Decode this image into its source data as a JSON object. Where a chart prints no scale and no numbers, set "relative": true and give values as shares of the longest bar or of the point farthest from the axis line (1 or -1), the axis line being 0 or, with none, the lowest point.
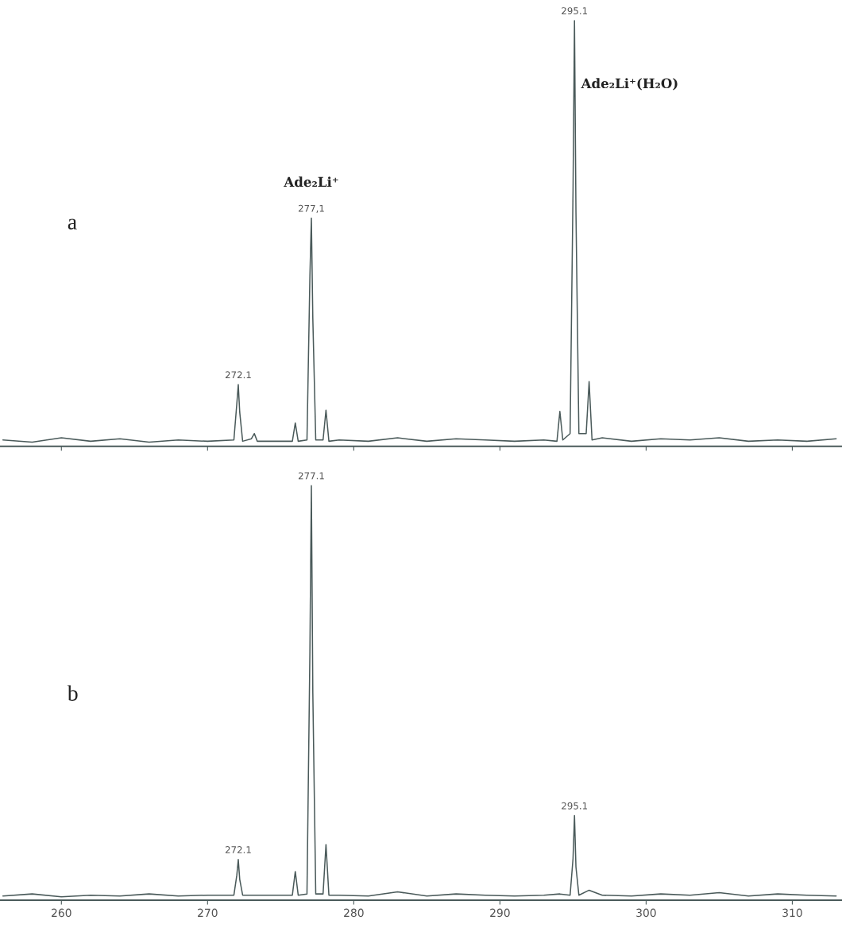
{
  "chart_data": [
    {
      "type": "line",
      "relative": true,
      "xlim": [
        255.8,
        313.4
      ],
      "xticks": [
        260,
        270,
        280,
        290,
        300,
        310
      ],
      "tick_labels": false,
      "series": [
        {
          "color": "#4a5a5a",
          "x": [
            256,
            258,
            260,
            262,
            264,
            266,
            268,
            270,
            271.8,
            272.0,
            272.1,
            272.2,
            272.4,
            273.0,
            273.2,
            273.4,
            275.8,
            276.0,
            276.2,
            276.8,
            277.0,
            277.1,
            277.2,
            277.4,
            277.9,
            278.1,
            278.3,
            279,
            281,
            283,
            285,
            287,
            289,
            291,
            293,
            293.9,
            294.1,
            294.3,
            294.8,
            295.0,
            295.1,
            295.2,
            295.4,
            295.9,
            296.1,
            296.3,
            297,
            299,
            301,
            303,
            305,
            307,
            309,
            311,
            313
          ],
          "values": [
            0.015,
            0.01,
            0.02,
            0.012,
            0.018,
            0.01,
            0.015,
            0.012,
            0.015,
            0.1,
            0.145,
            0.08,
            0.012,
            0.018,
            0.03,
            0.012,
            0.012,
            0.055,
            0.012,
            0.015,
            0.4,
            0.536,
            0.3,
            0.015,
            0.015,
            0.085,
            0.012,
            0.015,
            0.012,
            0.02,
            0.012,
            0.018,
            0.015,
            0.012,
            0.015,
            0.012,
            0.082,
            0.015,
            0.03,
            0.6,
            1,
            0.55,
            0.03,
            0.03,
            0.152,
            0.015,
            0.02,
            0.012,
            0.018,
            0.015,
            0.02,
            0.012,
            0.015,
            0.012,
            0.018
          ]
        }
      ],
      "annotations": [
        "a",
        {
          "text": "272.1",
          "x": 272.1,
          "y": 0.145
        },
        {
          "text": "277,1",
          "x": 277.1,
          "y": 0.536
        },
        {
          "text": "295.1",
          "x": 295.1,
          "y": 1
        },
        {
          "text": "Ade₂Li⁺",
          "x": 277.1,
          "y": 0.536
        },
        {
          "text": "Ade₂Li⁺(H₂O)",
          "x": 295.1,
          "y": 0.85
        }
      ]
    },
    {
      "type": "line",
      "relative": true,
      "xlim": [
        255.8,
        313.4
      ],
      "xticks": [
        260,
        270,
        280,
        290,
        300,
        310
      ],
      "tick_labels": "x",
      "series": [
        {
          "color": "#4a5a5a",
          "x": [
            256,
            258,
            260,
            262,
            264,
            266,
            268,
            270,
            271.8,
            272.0,
            272.1,
            272.2,
            272.4,
            275.8,
            276.0,
            276.2,
            276.8,
            277.0,
            277.1,
            277.2,
            277.4,
            277.9,
            278.1,
            278.3,
            279,
            281,
            283,
            285,
            287,
            289,
            291,
            293,
            294.1,
            294.8,
            295.0,
            295.1,
            295.2,
            295.4,
            296.1,
            297,
            299,
            301,
            303,
            305,
            307,
            309,
            311,
            313
          ],
          "values": [
            0.01,
            0.015,
            0.008,
            0.012,
            0.01,
            0.015,
            0.01,
            0.012,
            0.012,
            0.06,
            0.098,
            0.05,
            0.012,
            0.012,
            0.069,
            0.012,
            0.015,
            0.6,
            1,
            0.5,
            0.015,
            0.015,
            0.134,
            0.012,
            0.012,
            0.01,
            0.02,
            0.01,
            0.015,
            0.012,
            0.01,
            0.012,
            0.015,
            0.012,
            0.1,
            0.204,
            0.08,
            0.012,
            0.024,
            0.012,
            0.01,
            0.015,
            0.012,
            0.018,
            0.01,
            0.015,
            0.012,
            0.01
          ]
        }
      ],
      "annotations": [
        "b",
        {
          "text": "272.1",
          "x": 272.1,
          "y": 0.098
        },
        {
          "text": "277.1",
          "x": 277.1,
          "y": 1
        },
        {
          "text": "295.1",
          "x": 295.1,
          "y": 0.204
        }
      ]
    }
  ]
}
